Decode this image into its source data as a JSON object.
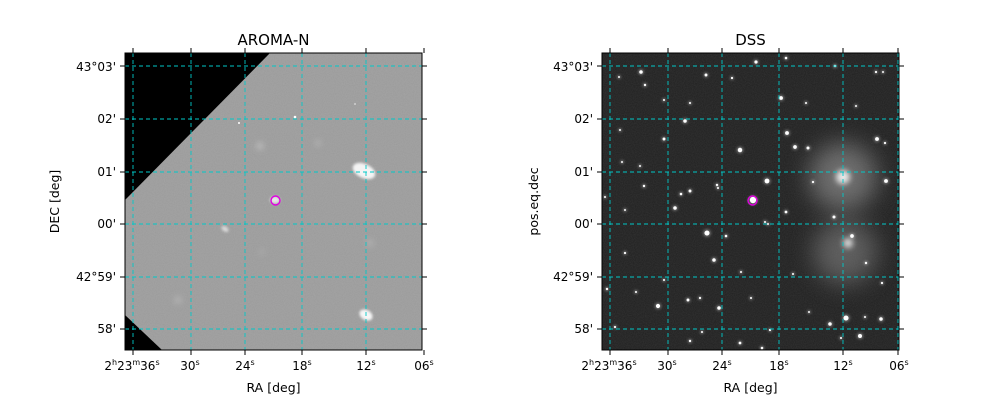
{
  "panels": [
    {
      "id": "aroma-n",
      "title": "AROMA-N",
      "xlabel": "RA [deg]",
      "ylabel": "DEC [deg]",
      "background": "#9a9a9a",
      "masked_color": "#000000",
      "x_ticks": [
        {
          "main": "2",
          "sup1": "h",
          "mid": "23",
          "sup2": "m",
          "tail": "36",
          "sup3": "s"
        },
        {
          "main": "30",
          "sup3": "s"
        },
        {
          "main": "24",
          "sup3": "s"
        },
        {
          "main": "18",
          "sup3": "s"
        },
        {
          "main": "12",
          "sup3": "s"
        },
        {
          "main": "06",
          "sup3": "s"
        }
      ],
      "y_ticks": [
        "43°03'",
        "02'",
        "01'",
        "00'",
        "42°59'",
        "58'"
      ]
    },
    {
      "id": "dss",
      "title": "DSS",
      "xlabel": "RA [deg]",
      "ylabel": "pos.eq.dec",
      "background": "#202020",
      "x_ticks": [
        {
          "main": "2",
          "sup1": "h",
          "mid": "23",
          "sup2": "m",
          "tail": "36",
          "sup3": "s"
        },
        {
          "main": "30",
          "sup3": "s"
        },
        {
          "main": "24",
          "sup3": "s"
        },
        {
          "main": "18",
          "sup3": "s"
        },
        {
          "main": "12",
          "sup3": "s"
        },
        {
          "main": "06",
          "sup3": "s"
        }
      ],
      "y_ticks": [
        "43°03'",
        "02'",
        "01'",
        "00'",
        "42°59'",
        "58'"
      ]
    }
  ],
  "colors": {
    "grid": "#00c8c8",
    "marker": "#e000e0"
  }
}
